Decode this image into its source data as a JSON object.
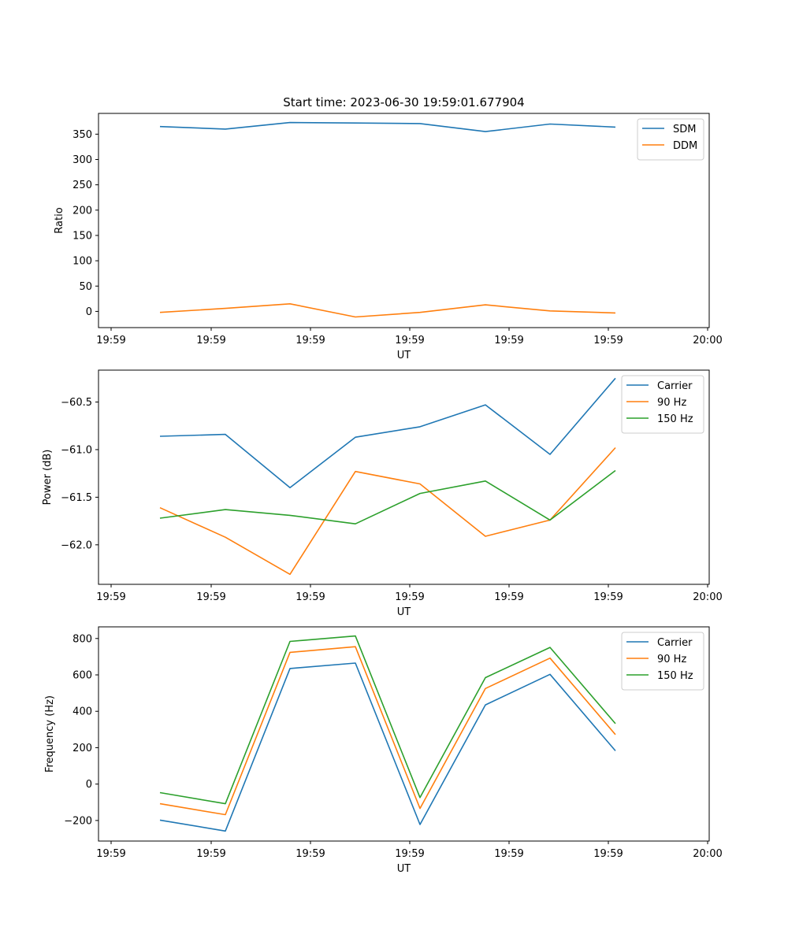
{
  "figure": {
    "title": "Start time: 2023-06-30 19:59:01.677904"
  },
  "chart_data": [
    {
      "type": "line",
      "title": "Start time: 2023-06-30 19:59:01.677904",
      "xlabel": "UT",
      "ylabel": "Ratio",
      "x_ticks": [
        "19:59",
        "19:59",
        "19:59",
        "19:59",
        "19:59",
        "19:59",
        "20:00"
      ],
      "y_ticks": [
        0,
        50,
        100,
        150,
        200,
        250,
        300,
        350
      ],
      "ylim": [
        -32,
        391
      ],
      "legend_position": "top-right",
      "grid": false,
      "series": [
        {
          "name": "SDM",
          "color": "#1f77b4",
          "values": [
            365,
            360,
            373,
            372,
            371,
            355,
            370,
            364
          ]
        },
        {
          "name": "DDM",
          "color": "#ff7f0e",
          "values": [
            -2,
            6,
            15,
            -11,
            -2,
            13,
            1,
            -3
          ]
        }
      ]
    },
    {
      "type": "line",
      "title": "",
      "xlabel": "UT",
      "ylabel": "Power (dB)",
      "x_ticks": [
        "19:59",
        "19:59",
        "19:59",
        "19:59",
        "19:59",
        "19:59",
        "20:00"
      ],
      "y_ticks": [
        -62.0,
        -61.5,
        -61.0,
        -60.5
      ],
      "ylim": [
        -62.415,
        -60.165
      ],
      "legend_position": "top-right",
      "grid": false,
      "series": [
        {
          "name": "Carrier",
          "color": "#1f77b4",
          "values": [
            -60.86,
            -60.84,
            -61.4,
            -60.87,
            -60.76,
            -60.53,
            -61.05,
            -60.25
          ]
        },
        {
          "name": "90 Hz",
          "color": "#ff7f0e",
          "values": [
            -61.61,
            -61.92,
            -62.31,
            -61.23,
            -61.36,
            -61.91,
            -61.74,
            -60.98
          ]
        },
        {
          "name": "150 Hz",
          "color": "#2ca02c",
          "values": [
            -61.72,
            -61.63,
            -61.69,
            -61.78,
            -61.46,
            -61.33,
            -61.74,
            -61.22
          ]
        }
      ]
    },
    {
      "type": "line",
      "title": "",
      "xlabel": "UT",
      "ylabel": "Frequency (Hz)",
      "x_ticks": [
        "19:59",
        "19:59",
        "19:59",
        "19:59",
        "19:59",
        "19:59",
        "20:00"
      ],
      "y_ticks": [
        -200,
        0,
        200,
        400,
        600,
        800
      ],
      "ylim": [
        -313,
        864
      ],
      "legend_position": "top-right",
      "grid": false,
      "series": [
        {
          "name": "Carrier",
          "color": "#1f77b4",
          "values": [
            -198,
            -258,
            635,
            665,
            -222,
            435,
            603,
            183
          ]
        },
        {
          "name": "90 Hz",
          "color": "#ff7f0e",
          "values": [
            -108,
            -168,
            724,
            755,
            -134,
            525,
            692,
            272
          ]
        },
        {
          "name": "150 Hz",
          "color": "#2ca02c",
          "values": [
            -47,
            -108,
            784,
            814,
            -74,
            585,
            751,
            332
          ]
        }
      ]
    }
  ]
}
